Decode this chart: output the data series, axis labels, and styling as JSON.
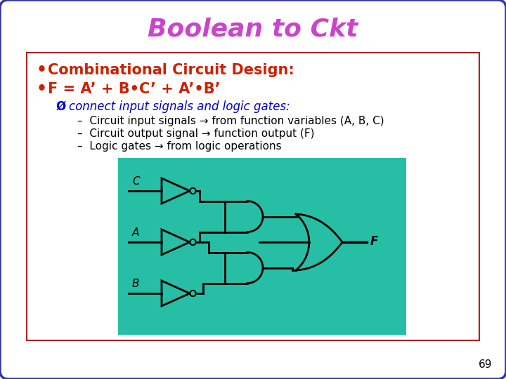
{
  "title": "Boolean to Ckt",
  "title_color": "#CC44CC",
  "title_fontsize": 26,
  "bg_color": "#FFFFFF",
  "outer_box_color": "#3333AA",
  "inner_box_color": "#AA2222",
  "bullet1": "Combinational Circuit Design:",
  "bullet1_color": "#CC2200",
  "bullet2": "F = A’ + B•C’ + A’•B’",
  "bullet2_color": "#CC2200",
  "arrow_color": "#0000CC",
  "dash_color": "#000000",
  "circuit_bg": "#26BFA5",
  "page_number": "69",
  "lw": 2.0
}
